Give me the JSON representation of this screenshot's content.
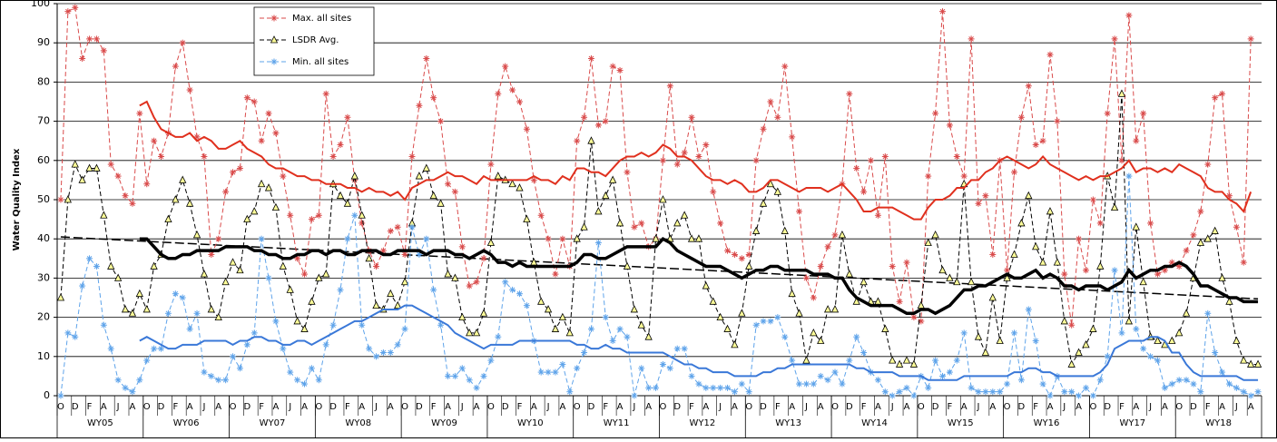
{
  "chart_data": {
    "type": "line",
    "y_label": "Water Quality Index",
    "ylim": [
      0,
      100
    ],
    "yticks": [
      0,
      10,
      20,
      30,
      40,
      50,
      60,
      70,
      80,
      90,
      100
    ],
    "grid": true,
    "categories": [
      "O",
      null,
      "D",
      null,
      "F",
      null,
      "A",
      null,
      "J",
      null,
      "A",
      null,
      "O",
      null,
      "D",
      null,
      "F",
      null,
      "A",
      null,
      "J",
      null,
      "A",
      null,
      "O",
      null,
      "D",
      null,
      "F",
      null,
      "A",
      null,
      "J",
      null,
      "A",
      null,
      "O",
      null,
      "D",
      null,
      "F",
      null,
      "A",
      null,
      "J",
      null,
      "A",
      null,
      "O",
      null,
      "D",
      null,
      "F",
      null,
      "A",
      null,
      "J",
      null,
      "A",
      null,
      "O",
      null,
      "D",
      null,
      "F",
      null,
      "A",
      null,
      "J",
      null,
      "A",
      null,
      "O",
      null,
      "D",
      null,
      "F",
      null,
      "A",
      null,
      "J",
      null,
      "A",
      null,
      "O",
      null,
      "D",
      null,
      "F",
      null,
      "A",
      null,
      "J",
      null,
      "A",
      null,
      "O",
      null,
      "D",
      null,
      "F",
      null,
      "A",
      null,
      "J",
      null,
      "A",
      null,
      "O",
      null,
      "D",
      null,
      "F",
      null,
      "A",
      null,
      "J",
      null,
      "A",
      null,
      "O",
      null,
      "D",
      null,
      "F",
      null,
      "A",
      null,
      "J",
      null,
      "A",
      null,
      "O",
      null,
      "D",
      null,
      "F",
      null,
      "A",
      null,
      "J",
      null,
      "A",
      null,
      "O",
      null,
      "D",
      null,
      "F",
      null,
      "A",
      null,
      "J",
      null,
      "A",
      null,
      "O",
      null,
      "D",
      null,
      "F",
      null,
      "A",
      null,
      "J",
      null,
      "A",
      null
    ],
    "groups": [
      "WY05",
      "WY06",
      "WY07",
      "WY08",
      "WY09",
      "WY10",
      "WY11",
      "WY12",
      "WY13",
      "WY14",
      "WY15",
      "WY16",
      "WY17",
      "WY18"
    ],
    "series": [
      {
        "name": "Max. all sites",
        "color": "#d94a4a",
        "style": "dashed",
        "marker": "asterisk",
        "values": [
          50,
          98,
          99,
          86,
          91,
          91,
          88,
          59,
          56,
          51,
          49,
          72,
          54,
          65,
          61,
          67,
          84,
          90,
          78,
          66,
          61,
          36,
          40,
          52,
          57,
          58,
          76,
          75,
          65,
          72,
          67,
          56,
          46,
          35,
          31,
          45,
          46,
          77,
          61,
          64,
          71,
          55,
          44,
          37,
          33,
          37,
          42,
          43,
          36,
          61,
          74,
          86,
          76,
          70,
          54,
          52,
          38,
          28,
          29,
          35,
          59,
          77,
          84,
          78,
          75,
          68,
          55,
          46,
          40,
          31,
          40,
          33,
          65,
          71,
          86,
          69,
          70,
          84,
          83,
          57,
          43,
          44,
          38,
          40,
          60,
          79,
          59,
          62,
          71,
          61,
          64,
          52,
          44,
          37,
          36,
          35,
          36,
          60,
          68,
          75,
          71,
          84,
          66,
          47,
          30,
          25,
          33,
          38,
          41,
          54,
          77,
          58,
          52,
          60,
          46,
          61,
          33,
          24,
          34,
          20,
          19,
          56,
          72,
          98,
          69,
          61,
          56,
          91,
          49,
          51,
          36,
          60,
          32,
          57,
          71,
          79,
          64,
          65,
          87,
          70,
          31,
          18,
          40,
          32,
          50,
          44,
          72,
          91,
          60,
          97,
          65,
          72,
          44,
          31,
          32,
          34,
          33,
          37,
          41,
          47,
          59,
          76,
          77,
          51,
          43,
          34,
          91,
          null
        ]
      },
      {
        "name": "LSDR Avg.",
        "color": "#000000",
        "style": "dashed",
        "marker": "triangle",
        "values": [
          25,
          50,
          59,
          55,
          58,
          58,
          46,
          33,
          30,
          22,
          21,
          26,
          22,
          33,
          36,
          45,
          50,
          55,
          49,
          41,
          31,
          22,
          20,
          29,
          34,
          32,
          45,
          47,
          54,
          53,
          48,
          33,
          27,
          19,
          17,
          24,
          30,
          31,
          54,
          51,
          49,
          56,
          46,
          35,
          23,
          22,
          26,
          23,
          29,
          44,
          56,
          58,
          51,
          49,
          31,
          30,
          20,
          16,
          16,
          21,
          39,
          56,
          55,
          54,
          53,
          45,
          34,
          24,
          22,
          17,
          20,
          16,
          40,
          43,
          65,
          47,
          51,
          55,
          44,
          33,
          22,
          18,
          15,
          40,
          50,
          40,
          44,
          46,
          40,
          40,
          28,
          24,
          20,
          17,
          13,
          21,
          33,
          42,
          49,
          54,
          52,
          42,
          26,
          21,
          9,
          16,
          14,
          22,
          22,
          41,
          31,
          24,
          29,
          24,
          24,
          17,
          9,
          8,
          9,
          8,
          23,
          39,
          41,
          32,
          30,
          29,
          54,
          29,
          15,
          11,
          25,
          14,
          30,
          36,
          44,
          51,
          38,
          34,
          47,
          34,
          19,
          8,
          11,
          13,
          17,
          33,
          56,
          48,
          77,
          19,
          43,
          29,
          15,
          14,
          13,
          14,
          16,
          21,
          30,
          39,
          40,
          42,
          30,
          24,
          14,
          9,
          8,
          8
        ]
      },
      {
        "name": "Min. all sites",
        "color": "#5ea3ea",
        "style": "dashed",
        "marker": "asterisk",
        "values": [
          0,
          16,
          15,
          28,
          35,
          33,
          18,
          12,
          4,
          2,
          1,
          4,
          9,
          12,
          12,
          21,
          26,
          25,
          17,
          21,
          6,
          5,
          4,
          4,
          10,
          7,
          13,
          16,
          40,
          30,
          19,
          12,
          6,
          4,
          3,
          7,
          4,
          13,
          18,
          27,
          40,
          46,
          18,
          12,
          10,
          11,
          11,
          13,
          17,
          43,
          36,
          40,
          27,
          18,
          5,
          5,
          7,
          4,
          2,
          5,
          9,
          15,
          29,
          27,
          26,
          23,
          14,
          6,
          6,
          6,
          8,
          1,
          7,
          11,
          17,
          39,
          20,
          14,
          17,
          15,
          0,
          7,
          2,
          2,
          8,
          7,
          12,
          12,
          5,
          3,
          2,
          2,
          2,
          2,
          1,
          3,
          1,
          18,
          19,
          19,
          20,
          15,
          9,
          3,
          3,
          3,
          5,
          4,
          6,
          3,
          9,
          15,
          11,
          6,
          4,
          1,
          0,
          1,
          2,
          0,
          5,
          2,
          9,
          5,
          6,
          9,
          16,
          2,
          1,
          1,
          1,
          1,
          3,
          16,
          4,
          22,
          14,
          3,
          0,
          5,
          1,
          1,
          0,
          2,
          0,
          4,
          10,
          32,
          16,
          56,
          17,
          12,
          10,
          9,
          2,
          3,
          4,
          4,
          3,
          1,
          21,
          11,
          6,
          3,
          2,
          1,
          0,
          1
        ]
      },
      {
        "color": "#e0301e",
        "style": "solid",
        "width": 2,
        "values": [
          null,
          null,
          null,
          null,
          null,
          null,
          null,
          null,
          null,
          null,
          null,
          74,
          75,
          71,
          68,
          67,
          66,
          66,
          67,
          65,
          66,
          65,
          63,
          63,
          64,
          65,
          63,
          62,
          61,
          59,
          58,
          58,
          57,
          56,
          56,
          55,
          55,
          54,
          54,
          54,
          53,
          53,
          52,
          53,
          52,
          52,
          51,
          52,
          50,
          53,
          54,
          55,
          55,
          56,
          57,
          56,
          56,
          55,
          54,
          56,
          55,
          55,
          55,
          55,
          55,
          55,
          56,
          55,
          55,
          54,
          56,
          55,
          58,
          58,
          57,
          57,
          56,
          58,
          60,
          61,
          61,
          62,
          61,
          62,
          64,
          63,
          61,
          61,
          60,
          58,
          56,
          55,
          55,
          54,
          55,
          54,
          52,
          52,
          53,
          55,
          55,
          54,
          53,
          52,
          53,
          53,
          53,
          52,
          53,
          54,
          52,
          50,
          47,
          47,
          48,
          48,
          48,
          47,
          46,
          45,
          45,
          48,
          50,
          50,
          51,
          53,
          53,
          55,
          55,
          57,
          58,
          60,
          61,
          60,
          59,
          58,
          59,
          61,
          59,
          58,
          57,
          56,
          55,
          56,
          55,
          56,
          56,
          57,
          58,
          60,
          57,
          58,
          58,
          57,
          58,
          57,
          59,
          58,
          57,
          56,
          53,
          52,
          52,
          50,
          49,
          47,
          52,
          null
        ]
      },
      {
        "color": "#000000",
        "style": "solid",
        "width": 3.5,
        "values": [
          null,
          null,
          null,
          null,
          null,
          null,
          null,
          null,
          null,
          null,
          null,
          40,
          40,
          38,
          36,
          35,
          35,
          36,
          36,
          37,
          37,
          37,
          37,
          38,
          38,
          38,
          38,
          37,
          37,
          36,
          36,
          35,
          35,
          36,
          36,
          37,
          37,
          36,
          37,
          37,
          36,
          36,
          37,
          37,
          37,
          36,
          36,
          37,
          37,
          37,
          37,
          36,
          37,
          37,
          37,
          36,
          36,
          35,
          36,
          37,
          36,
          34,
          34,
          33,
          34,
          33,
          33,
          33,
          33,
          33,
          33,
          33,
          34,
          36,
          36,
          35,
          35,
          36,
          37,
          38,
          38,
          38,
          38,
          38,
          40,
          39,
          37,
          36,
          35,
          34,
          33,
          33,
          33,
          32,
          31,
          30,
          31,
          32,
          32,
          33,
          33,
          32,
          32,
          32,
          32,
          31,
          31,
          31,
          30,
          30,
          27,
          25,
          24,
          23,
          23,
          23,
          23,
          22,
          21,
          21,
          22,
          22,
          21,
          22,
          23,
          25,
          27,
          27,
          28,
          28,
          29,
          30,
          31,
          30,
          30,
          31,
          32,
          30,
          31,
          30,
          28,
          28,
          27,
          28,
          28,
          28,
          27,
          28,
          29,
          32,
          30,
          31,
          32,
          32,
          33,
          33,
          34,
          33,
          31,
          28,
          28,
          27,
          26,
          25,
          25,
          24,
          24,
          24
        ]
      },
      {
        "color": "#3a78d8",
        "style": "solid",
        "width": 2,
        "values": [
          null,
          null,
          null,
          null,
          null,
          null,
          null,
          null,
          null,
          null,
          null,
          14,
          15,
          14,
          13,
          12,
          12,
          13,
          13,
          13,
          14,
          14,
          14,
          14,
          13,
          14,
          14,
          15,
          15,
          14,
          14,
          13,
          13,
          14,
          14,
          13,
          14,
          15,
          16,
          17,
          18,
          19,
          19,
          20,
          21,
          22,
          22,
          22,
          23,
          23,
          22,
          21,
          20,
          19,
          18,
          16,
          15,
          14,
          13,
          12,
          13,
          13,
          13,
          13,
          14,
          14,
          14,
          14,
          14,
          14,
          14,
          14,
          13,
          13,
          12,
          12,
          13,
          12,
          12,
          11,
          11,
          11,
          11,
          11,
          11,
          10,
          9,
          8,
          8,
          7,
          7,
          6,
          6,
          6,
          5,
          5,
          5,
          5,
          6,
          6,
          7,
          7,
          8,
          8,
          8,
          8,
          8,
          8,
          8,
          8,
          8,
          7,
          7,
          6,
          6,
          6,
          6,
          5,
          5,
          5,
          5,
          4,
          4,
          4,
          4,
          4,
          5,
          5,
          5,
          5,
          5,
          5,
          5,
          6,
          6,
          7,
          7,
          6,
          6,
          5,
          5,
          5,
          5,
          5,
          5,
          6,
          8,
          12,
          13,
          14,
          14,
          14,
          15,
          15,
          14,
          11,
          11,
          8,
          6,
          5,
          5,
          5,
          5,
          5,
          5,
          4,
          4,
          4
        ]
      }
    ],
    "trend": {
      "color": "#000000",
      "values": [
        40.5,
        24.7
      ]
    }
  }
}
